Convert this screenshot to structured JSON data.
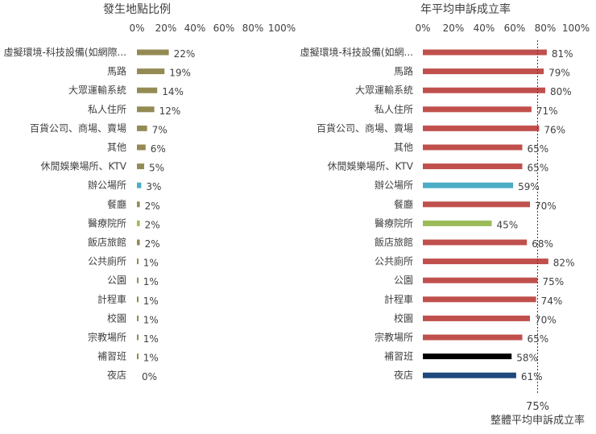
{
  "chart_data": [
    {
      "type": "bar",
      "orientation": "horizontal",
      "title": "發生地點比例",
      "axis_ticks": [
        "0%",
        "20%",
        "40%",
        "60%",
        "80%",
        "100%"
      ],
      "xlim": [
        0,
        100
      ],
      "categories": [
        "虛擬環境-科技設備(如網際...",
        "馬路",
        "大眾運輸系統",
        "私人住所",
        "百貨公司、商場、賣場",
        "其他",
        "休閒娛樂場所、KTV",
        "辦公場所",
        "餐廳",
        "醫療院所",
        "飯店旅館",
        "公共廁所",
        "公園",
        "計程車",
        "校園",
        "宗教場所",
        "補習班",
        "夜店"
      ],
      "values": [
        22,
        19,
        14,
        12,
        7,
        6,
        5,
        3,
        2,
        2,
        2,
        1,
        1,
        1,
        1,
        1,
        1,
        0
      ],
      "value_labels": [
        "22%",
        "19%",
        "14%",
        "12%",
        "7%",
        "6%",
        "5%",
        "3%",
        "2%",
        "2%",
        "2%",
        "1%",
        "1%",
        "1%",
        "1%",
        "1%",
        "1%",
        "0%"
      ],
      "colors": [
        "#948a54",
        "#948a54",
        "#948a54",
        "#948a54",
        "#948a54",
        "#948a54",
        "#948a54",
        "#4bacc6",
        "#948a54",
        "#9bbb59",
        "#948a54",
        "#948a54",
        "#948a54",
        "#948a54",
        "#948a54",
        "#948a54",
        "#948a54",
        "#1f497d"
      ]
    },
    {
      "type": "bar",
      "orientation": "horizontal",
      "title": "年平均申訴成立率",
      "axis_ticks": [
        "0%",
        "20%",
        "40%",
        "60%",
        "80%",
        "100%"
      ],
      "xlim": [
        0,
        100
      ],
      "categories": [
        "虛擬環境-科技設備(如網...",
        "馬路",
        "大眾運輸系統",
        "私人住所",
        "百貨公司、商場、賣場",
        "其他",
        "休閒娛樂場所、KTV",
        "辦公場所",
        "餐廳",
        "醫療院所",
        "飯店旅館",
        "公共廁所",
        "公園",
        "計程車",
        "校園",
        "宗教場所",
        "補習班",
        "夜店"
      ],
      "values": [
        81,
        79,
        80,
        71,
        76,
        65,
        65,
        59,
        70,
        45,
        68,
        82,
        75,
        74,
        70,
        65,
        58,
        61
      ],
      "value_labels": [
        "81%",
        "79%",
        "80%",
        "71%",
        "76%",
        "65%",
        "65%",
        "59%",
        "70%",
        "45%",
        "68%",
        "82%",
        "75%",
        "74%",
        "70%",
        "65%",
        "58%",
        "61%"
      ],
      "colors": [
        "#c0504d",
        "#c0504d",
        "#c0504d",
        "#c0504d",
        "#c0504d",
        "#c0504d",
        "#c0504d",
        "#4bacc6",
        "#c0504d",
        "#9bbb59",
        "#c0504d",
        "#c0504d",
        "#c0504d",
        "#c0504d",
        "#c0504d",
        "#c0504d",
        "#000000",
        "#1f497d"
      ],
      "reference_line": {
        "value": 75,
        "label_value": "75%",
        "label_text": "整體平均申訴成立率"
      }
    }
  ]
}
